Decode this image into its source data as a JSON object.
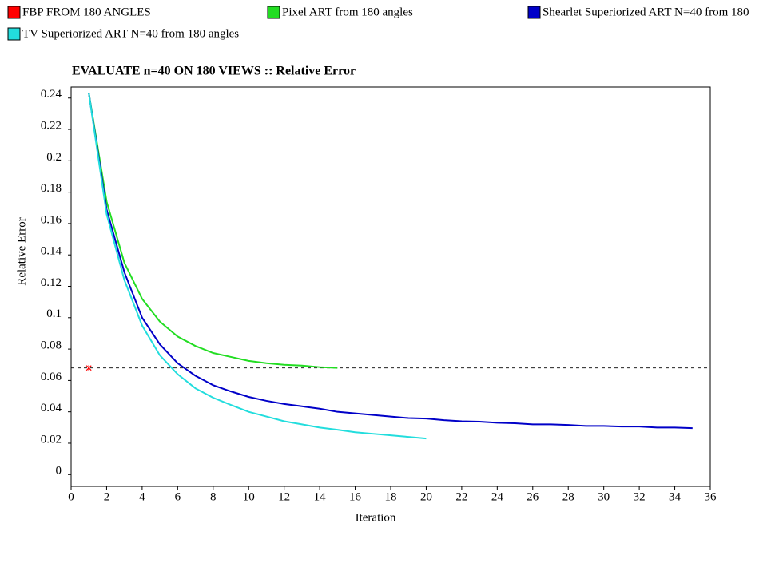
{
  "chart_data": {
    "type": "line",
    "title": "EVALUATE n=40 ON 180 VIEWS :: Relative Error",
    "xlabel": "Iteration",
    "ylabel": "Relative Error",
    "xlim": [
      0,
      36
    ],
    "ylim": [
      -0.0075,
      0.247
    ],
    "xticks": [
      0,
      2,
      4,
      6,
      8,
      10,
      12,
      14,
      16,
      18,
      20,
      22,
      24,
      26,
      28,
      30,
      32,
      34,
      36
    ],
    "yticks": [
      0,
      0.02,
      0.04,
      0.06,
      0.08,
      0.1,
      0.12,
      0.14,
      0.16,
      0.18,
      0.2,
      0.22,
      0.24
    ],
    "series": [
      {
        "name": "FBP FROM 180 ANGLES",
        "color": "#ff0000",
        "x": [
          1
        ],
        "values": [
          0.068
        ]
      },
      {
        "name": "Pixel ART from 180 angles",
        "color": "#22dd22",
        "x": [
          1,
          2,
          3,
          4,
          5,
          6,
          7,
          8,
          9,
          10,
          11,
          12,
          13,
          14,
          15
        ],
        "values": [
          0.243,
          0.174,
          0.135,
          0.112,
          0.0975,
          0.088,
          0.082,
          0.0775,
          0.075,
          0.0725,
          0.071,
          0.07,
          0.0695,
          0.0685,
          0.068
        ]
      },
      {
        "name": "Shearlet Superiorized ART N=40 from 180",
        "color": "#0000c8",
        "x": [
          1,
          2,
          3,
          4,
          5,
          6,
          7,
          8,
          9,
          10,
          11,
          12,
          13,
          14,
          15,
          16,
          17,
          18,
          19,
          20,
          21,
          22,
          23,
          24,
          25,
          26,
          27,
          28,
          29,
          30,
          31,
          32,
          33,
          34,
          35
        ],
        "values": [
          0.243,
          0.169,
          0.129,
          0.1,
          0.083,
          0.071,
          0.063,
          0.057,
          0.053,
          0.0495,
          0.047,
          0.045,
          0.0435,
          0.042,
          0.04,
          0.039,
          0.038,
          0.037,
          0.036,
          0.0357,
          0.0347,
          0.034,
          0.0337,
          0.033,
          0.0327,
          0.032,
          0.032,
          0.0316,
          0.031,
          0.031,
          0.0306,
          0.0306,
          0.03,
          0.03,
          0.0296
        ]
      },
      {
        "name": "TV Superiorized ART N=40 from 180 angles",
        "color": "#22dddd",
        "x": [
          1,
          2,
          3,
          4,
          5,
          6,
          7,
          8,
          9,
          10,
          11,
          12,
          13,
          14,
          15,
          16,
          17,
          18,
          19,
          20
        ],
        "values": [
          0.243,
          0.166,
          0.124,
          0.095,
          0.076,
          0.064,
          0.055,
          0.049,
          0.0444,
          0.04,
          0.037,
          0.034,
          0.032,
          0.03,
          0.0286,
          0.027,
          0.026,
          0.025,
          0.024,
          0.023
        ]
      }
    ]
  }
}
